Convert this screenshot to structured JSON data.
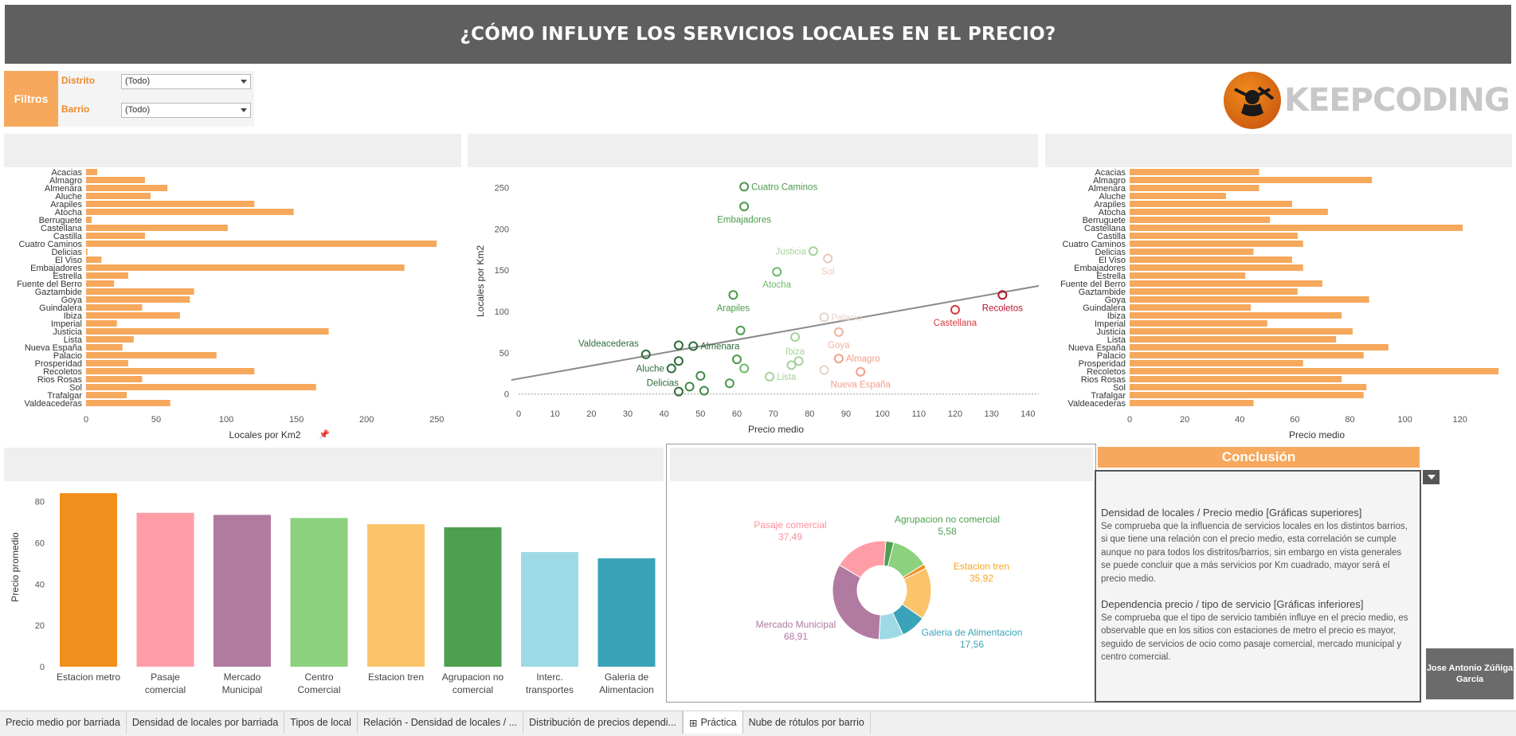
{
  "title": "¿CÓMO INFLUYE LOS SERVICIOS LOCALES EN EL PRECIO?",
  "filters": {
    "label": "Filtros",
    "distrito_label": "Distrito",
    "distrito_value": "(Todo)",
    "barrio_label": "Barrio",
    "barrio_value": "(Todo)"
  },
  "logo": {
    "text": "KEEPCODING",
    "icon": "keepcoding-logo-icon"
  },
  "colors": {
    "accent": "#f6a85c",
    "orange_bar": "#f6a85c",
    "title_bg": "#5f5f5f"
  },
  "chart_data": [
    {
      "type": "bar",
      "orientation": "horizontal",
      "categories": [
        "Acacias",
        "Almagro",
        "Almenara",
        "Aluche",
        "Arapiles",
        "Atocha",
        "Berruguete",
        "Castellana",
        "Castilla",
        "Cuatro Caminos",
        "Delicias",
        "El Viso",
        "Embajadores",
        "Estrella",
        "Fuente del Berro",
        "Gaztambide",
        "Goya",
        "Guindalera",
        "Ibiza",
        "Imperial",
        "Justicia",
        "Lista",
        "Nueva España",
        "Palacio",
        "Prosperidad",
        "Recoletos",
        "Rios Rosas",
        "Sol",
        "Trafalgar",
        "Valdeacederas"
      ],
      "values": [
        8,
        42,
        58,
        46,
        120,
        148,
        4,
        101,
        42,
        250,
        1,
        11,
        227,
        30,
        20,
        77,
        74,
        40,
        67,
        22,
        173,
        34,
        26,
        93,
        30,
        120,
        40,
        164,
        29,
        60
      ],
      "xlabel": "Locales por Km2",
      "ticks": [
        0,
        50,
        100,
        150,
        200,
        250
      ],
      "xlim": [
        0,
        255
      ]
    },
    {
      "type": "scatter",
      "xlabel": "Precio medio",
      "ylabel": "Locales por Km2",
      "xticks": [
        0,
        10,
        20,
        30,
        40,
        50,
        60,
        70,
        80,
        90,
        100,
        110,
        120,
        130,
        140
      ],
      "yticks": [
        0,
        50,
        100,
        150,
        200,
        250
      ],
      "xlim": [
        0,
        143
      ],
      "ylim": [
        -8,
        262
      ],
      "trend": [
        [
          -2,
          17
        ],
        [
          143,
          131
        ]
      ],
      "points": [
        {
          "x": 62,
          "y": 251,
          "label": "Cuatro Caminos",
          "color": "#4a9a4a"
        },
        {
          "x": 62,
          "y": 227,
          "label": "Embajadores",
          "color": "#4a9a4a"
        },
        {
          "x": 81,
          "y": 173,
          "label": "Justicia",
          "color": "#a6d19a"
        },
        {
          "x": 85,
          "y": 164,
          "label": "Sol",
          "color": "#e8c9b9"
        },
        {
          "x": 71,
          "y": 148,
          "label": "Atocha",
          "color": "#6fb86a"
        },
        {
          "x": 59,
          "y": 120,
          "label": "Arapiles",
          "color": "#4a9a4a"
        },
        {
          "x": 120,
          "y": 102,
          "label": "Castellana",
          "color": "#d83a3a"
        },
        {
          "x": 133,
          "y": 120,
          "label": "Recoletos",
          "color": "#b8102c"
        },
        {
          "x": 84,
          "y": 93,
          "label": "Palacio",
          "color": "#e8d4c6"
        },
        {
          "x": 88,
          "y": 75,
          "label": "Goya",
          "color": "#f0b19a"
        },
        {
          "x": 76,
          "y": 69,
          "label": "Ibiza",
          "color": "#a6d19a"
        },
        {
          "x": 88,
          "y": 43,
          "label": "Almagro",
          "color": "#f0a08a"
        },
        {
          "x": 94,
          "y": 27,
          "label": "Nueva España",
          "color": "#f0a08a"
        },
        {
          "x": 69,
          "y": 21,
          "label": "Lista",
          "color": "#a6d19a"
        },
        {
          "x": 35,
          "y": 48,
          "label": "Valdeacederas",
          "color": "#2f6b3a"
        },
        {
          "x": 44,
          "y": 59,
          "label": "",
          "color": "#2f6b3a"
        },
        {
          "x": 48,
          "y": 58,
          "label": "Almenara",
          "color": "#2f6b3a"
        },
        {
          "x": 44,
          "y": 40,
          "label": "",
          "color": "#2f6b3a"
        },
        {
          "x": 42,
          "y": 31,
          "label": "Aluche",
          "color": "#2f6b3a"
        },
        {
          "x": 44,
          "y": 3,
          "label": "Delicias",
          "color": "#2f6b3a"
        },
        {
          "x": 47,
          "y": 9,
          "label": "",
          "color": "#3f8a45"
        },
        {
          "x": 50,
          "y": 22,
          "label": "",
          "color": "#3f8a45"
        },
        {
          "x": 51,
          "y": 4,
          "label": "",
          "color": "#3f8a45"
        },
        {
          "x": 58,
          "y": 13,
          "label": "",
          "color": "#4a9a4a"
        },
        {
          "x": 60,
          "y": 42,
          "label": "",
          "color": "#4a9a4a"
        },
        {
          "x": 61,
          "y": 77,
          "label": "",
          "color": "#4a9a4a"
        },
        {
          "x": 62,
          "y": 31,
          "label": "",
          "color": "#6fb86a"
        },
        {
          "x": 75,
          "y": 35,
          "label": "",
          "color": "#a6d19a"
        },
        {
          "x": 77,
          "y": 40,
          "label": "",
          "color": "#a6d19a"
        },
        {
          "x": 84,
          "y": 29,
          "label": "",
          "color": "#e8d4c6"
        }
      ]
    },
    {
      "type": "bar",
      "orientation": "horizontal",
      "categories": [
        "Acacias",
        "Almagro",
        "Almenara",
        "Aluche",
        "Arapiles",
        "Atocha",
        "Berruguete",
        "Castellana",
        "Castilla",
        "Cuatro Caminos",
        "Delicias",
        "El Viso",
        "Embajadores",
        "Estrella",
        "Fuente del Berro",
        "Gaztambide",
        "Goya",
        "Guindalera",
        "Ibiza",
        "Imperial",
        "Justicia",
        "Lista",
        "Nueva España",
        "Palacio",
        "Prosperidad",
        "Recoletos",
        "Rios Rosas",
        "Sol",
        "Trafalgar",
        "Valdeacederas"
      ],
      "values": [
        47,
        88,
        47,
        35,
        59,
        72,
        51,
        121,
        61,
        63,
        45,
        59,
        63,
        42,
        70,
        61,
        87,
        44,
        77,
        50,
        81,
        75,
        94,
        85,
        63,
        134,
        77,
        86,
        85,
        45
      ],
      "xlabel": "Precio medio",
      "ticks": [
        0,
        20,
        40,
        60,
        80,
        100,
        120
      ],
      "xlim": [
        0,
        136
      ]
    },
    {
      "type": "bar",
      "categories": [
        "Estacion metro",
        "Pasaje comercial",
        "Mercado Municipal",
        "Centro Comercial",
        "Estacion tren",
        "Agrupacion no comercial",
        "Interc. transportes",
        "Galeria de Alimentacion"
      ],
      "category_lines": [
        [
          "Estacion metro"
        ],
        [
          "Pasaje",
          "comercial"
        ],
        [
          "Mercado",
          "Municipal"
        ],
        [
          "Centro",
          "Comercial"
        ],
        [
          "Estacion tren"
        ],
        [
          "Agrupacion no",
          "comercial"
        ],
        [
          "Interc.",
          "transportes"
        ],
        [
          "Galeria de",
          "Alimentacion"
        ]
      ],
      "values": [
        84,
        74.5,
        73.5,
        72,
        69,
        67.5,
        55.5,
        52.5
      ],
      "colors": [
        "#f28e1c",
        "#ff9da7",
        "#b07aa1",
        "#8cd17d",
        "#fbc46b",
        "#4e9f50",
        "#9edae5",
        "#3ba3b9"
      ],
      "ylabel": "Precio promedio",
      "yticks": [
        0,
        20,
        40,
        60,
        80
      ],
      "ylim": [
        0,
        86
      ]
    },
    {
      "type": "pie",
      "donut": true,
      "slices": [
        {
          "label": "Agrupacion no comercial",
          "value": 5.58,
          "display": "5,58",
          "color": "#4e9f50"
        },
        {
          "label": "Agrupacion no comercial",
          "value": 26,
          "display": "",
          "color": "#8cd17d"
        },
        {
          "label": "Estacion metro",
          "value": 3,
          "display": "",
          "color": "#f28e1c"
        },
        {
          "label": "Estacion tren",
          "value": 35.92,
          "display": "35,92",
          "color": "#fbc46b"
        },
        {
          "label": "Galeria de Alimentacion",
          "value": 17.56,
          "display": "17,56",
          "color": "#3ba3b9"
        },
        {
          "label": "Interc. transportes",
          "value": 17,
          "display": "",
          "color": "#9edae5"
        },
        {
          "label": "Mercado Municipal",
          "value": 68.91,
          "display": "68,91",
          "color": "#b07aa1"
        },
        {
          "label": "Pasaje comercial",
          "value": 37.49,
          "display": "37,49",
          "color": "#ff9da7"
        }
      ],
      "labels": [
        {
          "name": "Agrupacion no comercial",
          "value": "5,58",
          "color": "#4e9f50"
        },
        {
          "name": "Estacion tren",
          "value": "35,92",
          "color": "#f5a623"
        },
        {
          "name": "Galeria de Alimentacion",
          "value": "17,56",
          "color": "#3ba3b9"
        },
        {
          "name": "Mercado Municipal",
          "value": "68,91",
          "color": "#b07aa1"
        },
        {
          "name": "Pasaje comercial",
          "value": "37,49",
          "color": "#ff8f9c"
        }
      ]
    }
  ],
  "conclusion": {
    "title": "Conclusión",
    "h1": "Densidad de locales / Precio medio [Gráficas superiores]",
    "p1": "Se comprueba que la influencia de servicios locales en los distintos barrios, si que tiene una relación con el precio medio, esta correlación se cumple aunque no para todos los distritos/barrios, sin embargo en vista generales se puede concluir que a más servicios por Km cuadrado, mayor será el precio medio.",
    "h2": "Dependencia precio / tipo de servicio [Gráficas inferiores]",
    "p2": "Se comprueba que el tipo de servicio también influye en el precio medio, es observable que en los sitios con estaciones de metro el precio es mayor, seguido de servicios de ocio como pasaje comercial, mercado municipal y centro comercial."
  },
  "author": "Jose Antonio Zúñiga García",
  "tabs": [
    {
      "label": "Precio medio por barriada",
      "active": false
    },
    {
      "label": "Densidad de locales por barriada",
      "active": false
    },
    {
      "label": "Tipos de local",
      "active": false
    },
    {
      "label": "Relación - Densidad de locales / ...",
      "active": false
    },
    {
      "label": "Distribución de precios dependi...",
      "active": false
    },
    {
      "label": "Práctica",
      "active": true,
      "icon": "dashboard-grid-icon"
    },
    {
      "label": "Nube de rótulos por barrio",
      "active": false
    }
  ]
}
